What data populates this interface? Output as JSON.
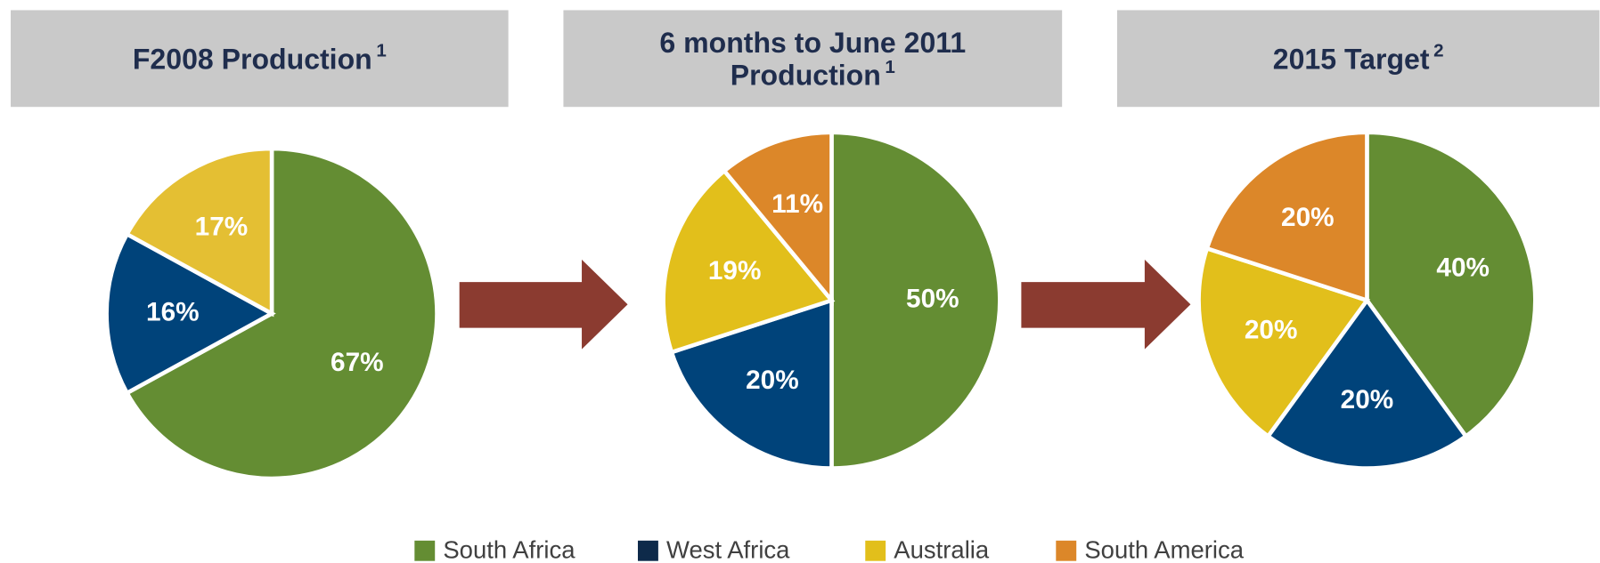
{
  "chart_data": [
    {
      "type": "pie",
      "title": [
        "F2008 Production"
      ],
      "title_superscript": "1",
      "categories": [
        "South Africa",
        "West Africa",
        "Australia"
      ],
      "values": [
        67,
        16,
        17
      ],
      "value_labels": [
        "67%",
        "16%",
        "17%"
      ],
      "colors": [
        "#648d33",
        "#00437a",
        "#e4bf33"
      ]
    },
    {
      "type": "pie",
      "title": [
        "6 months to June 2011",
        "Production"
      ],
      "title_superscript": "1",
      "categories": [
        "South Africa",
        "West Africa",
        "Australia",
        "South America"
      ],
      "values": [
        50,
        20,
        19,
        11
      ],
      "value_labels": [
        "50%",
        "20%",
        "19%",
        "11%"
      ],
      "colors": [
        "#648d33",
        "#00437a",
        "#e2bf1b",
        "#dc8729"
      ]
    },
    {
      "type": "pie",
      "title": [
        "2015 Target"
      ],
      "title_superscript": "2",
      "categories": [
        "South Africa",
        "West Africa",
        "Australia",
        "South America"
      ],
      "values": [
        40,
        20,
        20,
        20
      ],
      "value_labels": [
        "40%",
        "20%",
        "20%",
        "20%"
      ],
      "colors": [
        "#648d33",
        "#00437a",
        "#e2bf1b",
        "#dc8729"
      ]
    }
  ],
  "legend": [
    {
      "name": "South Africa",
      "color": "#648d33"
    },
    {
      "name": "West Africa",
      "color": "#0e2a4a"
    },
    {
      "name": "Australia",
      "color": "#e2bf1b"
    },
    {
      "name": "South America",
      "color": "#dc8729"
    }
  ]
}
